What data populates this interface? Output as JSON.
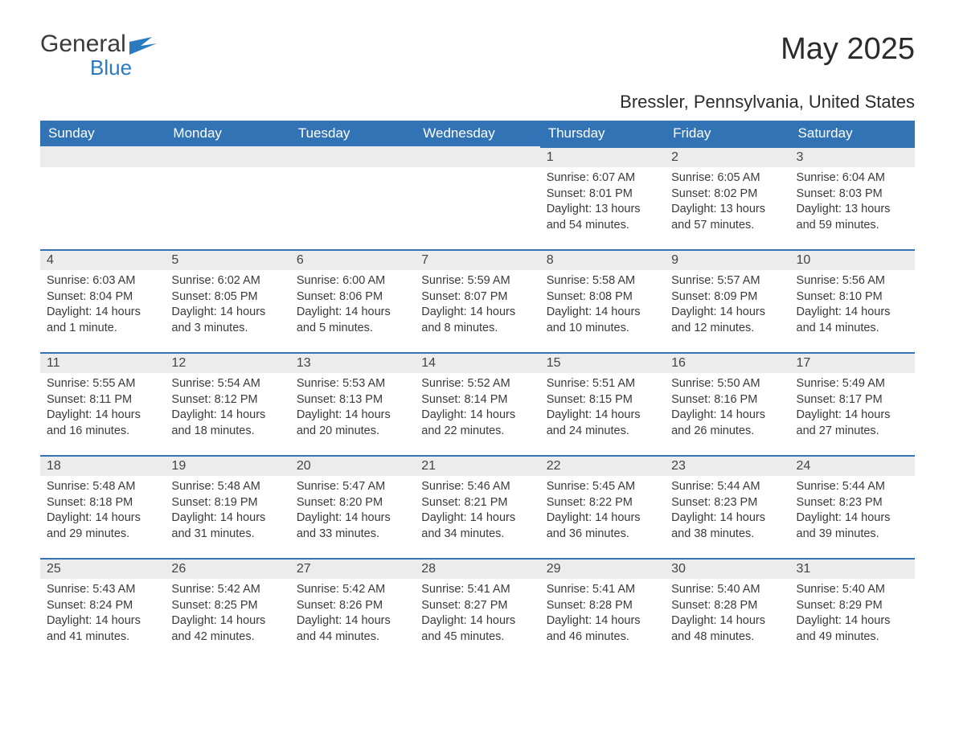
{
  "logo": {
    "line1": "General",
    "line2": "Blue"
  },
  "title": "May 2025",
  "location": "Bressler, Pennsylvania, United States",
  "colors": {
    "header_bg": "#3173b5",
    "header_text": "#ffffff",
    "daynum_bg": "#ececec",
    "daynum_border": "#3173b5",
    "text": "#3a3a3a",
    "logo_blue": "#2a7abf",
    "page_bg": "#ffffff"
  },
  "typography": {
    "title_fontsize": 38,
    "location_fontsize": 22,
    "dayheader_fontsize": 17,
    "daynum_fontsize": 16,
    "body_fontsize": 14.5,
    "logo_fontsize": 30
  },
  "day_headers": [
    "Sunday",
    "Monday",
    "Tuesday",
    "Wednesday",
    "Thursday",
    "Friday",
    "Saturday"
  ],
  "weeks": [
    [
      {
        "n": "",
        "sunrise": "",
        "sunset": "",
        "daylight": ""
      },
      {
        "n": "",
        "sunrise": "",
        "sunset": "",
        "daylight": ""
      },
      {
        "n": "",
        "sunrise": "",
        "sunset": "",
        "daylight": ""
      },
      {
        "n": "",
        "sunrise": "",
        "sunset": "",
        "daylight": ""
      },
      {
        "n": "1",
        "sunrise": "Sunrise: 6:07 AM",
        "sunset": "Sunset: 8:01 PM",
        "daylight": "Daylight: 13 hours and 54 minutes."
      },
      {
        "n": "2",
        "sunrise": "Sunrise: 6:05 AM",
        "sunset": "Sunset: 8:02 PM",
        "daylight": "Daylight: 13 hours and 57 minutes."
      },
      {
        "n": "3",
        "sunrise": "Sunrise: 6:04 AM",
        "sunset": "Sunset: 8:03 PM",
        "daylight": "Daylight: 13 hours and 59 minutes."
      }
    ],
    [
      {
        "n": "4",
        "sunrise": "Sunrise: 6:03 AM",
        "sunset": "Sunset: 8:04 PM",
        "daylight": "Daylight: 14 hours and 1 minute."
      },
      {
        "n": "5",
        "sunrise": "Sunrise: 6:02 AM",
        "sunset": "Sunset: 8:05 PM",
        "daylight": "Daylight: 14 hours and 3 minutes."
      },
      {
        "n": "6",
        "sunrise": "Sunrise: 6:00 AM",
        "sunset": "Sunset: 8:06 PM",
        "daylight": "Daylight: 14 hours and 5 minutes."
      },
      {
        "n": "7",
        "sunrise": "Sunrise: 5:59 AM",
        "sunset": "Sunset: 8:07 PM",
        "daylight": "Daylight: 14 hours and 8 minutes."
      },
      {
        "n": "8",
        "sunrise": "Sunrise: 5:58 AM",
        "sunset": "Sunset: 8:08 PM",
        "daylight": "Daylight: 14 hours and 10 minutes."
      },
      {
        "n": "9",
        "sunrise": "Sunrise: 5:57 AM",
        "sunset": "Sunset: 8:09 PM",
        "daylight": "Daylight: 14 hours and 12 minutes."
      },
      {
        "n": "10",
        "sunrise": "Sunrise: 5:56 AM",
        "sunset": "Sunset: 8:10 PM",
        "daylight": "Daylight: 14 hours and 14 minutes."
      }
    ],
    [
      {
        "n": "11",
        "sunrise": "Sunrise: 5:55 AM",
        "sunset": "Sunset: 8:11 PM",
        "daylight": "Daylight: 14 hours and 16 minutes."
      },
      {
        "n": "12",
        "sunrise": "Sunrise: 5:54 AM",
        "sunset": "Sunset: 8:12 PM",
        "daylight": "Daylight: 14 hours and 18 minutes."
      },
      {
        "n": "13",
        "sunrise": "Sunrise: 5:53 AM",
        "sunset": "Sunset: 8:13 PM",
        "daylight": "Daylight: 14 hours and 20 minutes."
      },
      {
        "n": "14",
        "sunrise": "Sunrise: 5:52 AM",
        "sunset": "Sunset: 8:14 PM",
        "daylight": "Daylight: 14 hours and 22 minutes."
      },
      {
        "n": "15",
        "sunrise": "Sunrise: 5:51 AM",
        "sunset": "Sunset: 8:15 PM",
        "daylight": "Daylight: 14 hours and 24 minutes."
      },
      {
        "n": "16",
        "sunrise": "Sunrise: 5:50 AM",
        "sunset": "Sunset: 8:16 PM",
        "daylight": "Daylight: 14 hours and 26 minutes."
      },
      {
        "n": "17",
        "sunrise": "Sunrise: 5:49 AM",
        "sunset": "Sunset: 8:17 PM",
        "daylight": "Daylight: 14 hours and 27 minutes."
      }
    ],
    [
      {
        "n": "18",
        "sunrise": "Sunrise: 5:48 AM",
        "sunset": "Sunset: 8:18 PM",
        "daylight": "Daylight: 14 hours and 29 minutes."
      },
      {
        "n": "19",
        "sunrise": "Sunrise: 5:48 AM",
        "sunset": "Sunset: 8:19 PM",
        "daylight": "Daylight: 14 hours and 31 minutes."
      },
      {
        "n": "20",
        "sunrise": "Sunrise: 5:47 AM",
        "sunset": "Sunset: 8:20 PM",
        "daylight": "Daylight: 14 hours and 33 minutes."
      },
      {
        "n": "21",
        "sunrise": "Sunrise: 5:46 AM",
        "sunset": "Sunset: 8:21 PM",
        "daylight": "Daylight: 14 hours and 34 minutes."
      },
      {
        "n": "22",
        "sunrise": "Sunrise: 5:45 AM",
        "sunset": "Sunset: 8:22 PM",
        "daylight": "Daylight: 14 hours and 36 minutes."
      },
      {
        "n": "23",
        "sunrise": "Sunrise: 5:44 AM",
        "sunset": "Sunset: 8:23 PM",
        "daylight": "Daylight: 14 hours and 38 minutes."
      },
      {
        "n": "24",
        "sunrise": "Sunrise: 5:44 AM",
        "sunset": "Sunset: 8:23 PM",
        "daylight": "Daylight: 14 hours and 39 minutes."
      }
    ],
    [
      {
        "n": "25",
        "sunrise": "Sunrise: 5:43 AM",
        "sunset": "Sunset: 8:24 PM",
        "daylight": "Daylight: 14 hours and 41 minutes."
      },
      {
        "n": "26",
        "sunrise": "Sunrise: 5:42 AM",
        "sunset": "Sunset: 8:25 PM",
        "daylight": "Daylight: 14 hours and 42 minutes."
      },
      {
        "n": "27",
        "sunrise": "Sunrise: 5:42 AM",
        "sunset": "Sunset: 8:26 PM",
        "daylight": "Daylight: 14 hours and 44 minutes."
      },
      {
        "n": "28",
        "sunrise": "Sunrise: 5:41 AM",
        "sunset": "Sunset: 8:27 PM",
        "daylight": "Daylight: 14 hours and 45 minutes."
      },
      {
        "n": "29",
        "sunrise": "Sunrise: 5:41 AM",
        "sunset": "Sunset: 8:28 PM",
        "daylight": "Daylight: 14 hours and 46 minutes."
      },
      {
        "n": "30",
        "sunrise": "Sunrise: 5:40 AM",
        "sunset": "Sunset: 8:28 PM",
        "daylight": "Daylight: 14 hours and 48 minutes."
      },
      {
        "n": "31",
        "sunrise": "Sunrise: 5:40 AM",
        "sunset": "Sunset: 8:29 PM",
        "daylight": "Daylight: 14 hours and 49 minutes."
      }
    ]
  ]
}
